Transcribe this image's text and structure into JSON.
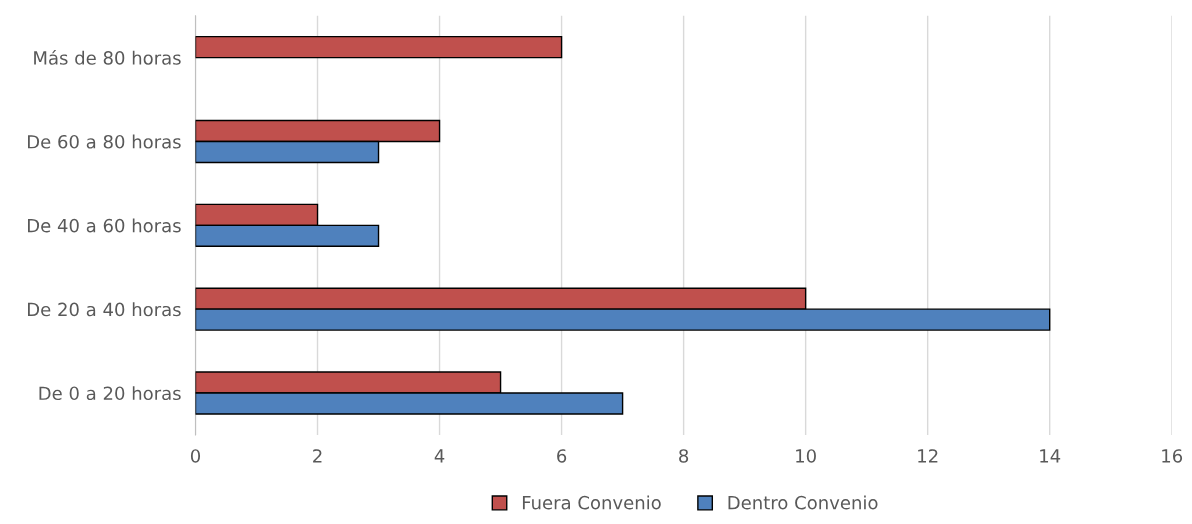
{
  "chart_data": {
    "type": "bar",
    "orientation": "horizontal",
    "categories": [
      "Más de 80 horas",
      "De 60 a 80 horas",
      "De 40 a 60 horas",
      "De 20 a 40 horas",
      "De 0 a 20 horas"
    ],
    "series": [
      {
        "name": "Fuera Convenio",
        "color": "#c0504d",
        "values": [
          6,
          4,
          2,
          10,
          5
        ]
      },
      {
        "name": "Dentro Convenio",
        "color": "#4f81bd",
        "values": [
          null,
          3,
          3,
          14,
          7
        ]
      }
    ],
    "xlim": [
      0,
      16
    ],
    "xticks": [
      0,
      2,
      4,
      6,
      8,
      10,
      12,
      14,
      16
    ],
    "grid": "x",
    "legend": "bottom"
  }
}
